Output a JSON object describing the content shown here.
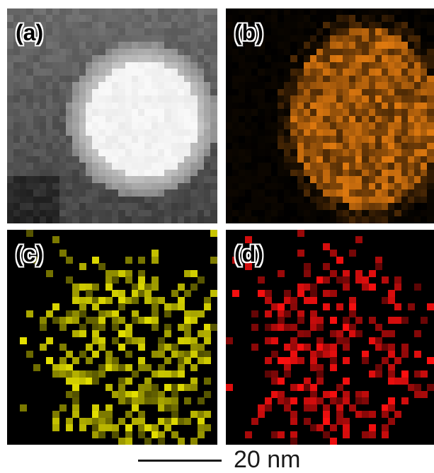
{
  "panels": {
    "a": {
      "label": "(a)",
      "colormap": "#ffffff"
    },
    "b": {
      "label": "(b)",
      "colormap": "#e07a10"
    },
    "c": {
      "label": "(c)",
      "colormap": "#e4e000"
    },
    "d": {
      "label": "(d)",
      "colormap": "#ff1010"
    }
  },
  "scalebar": {
    "label": "20 nm"
  }
}
